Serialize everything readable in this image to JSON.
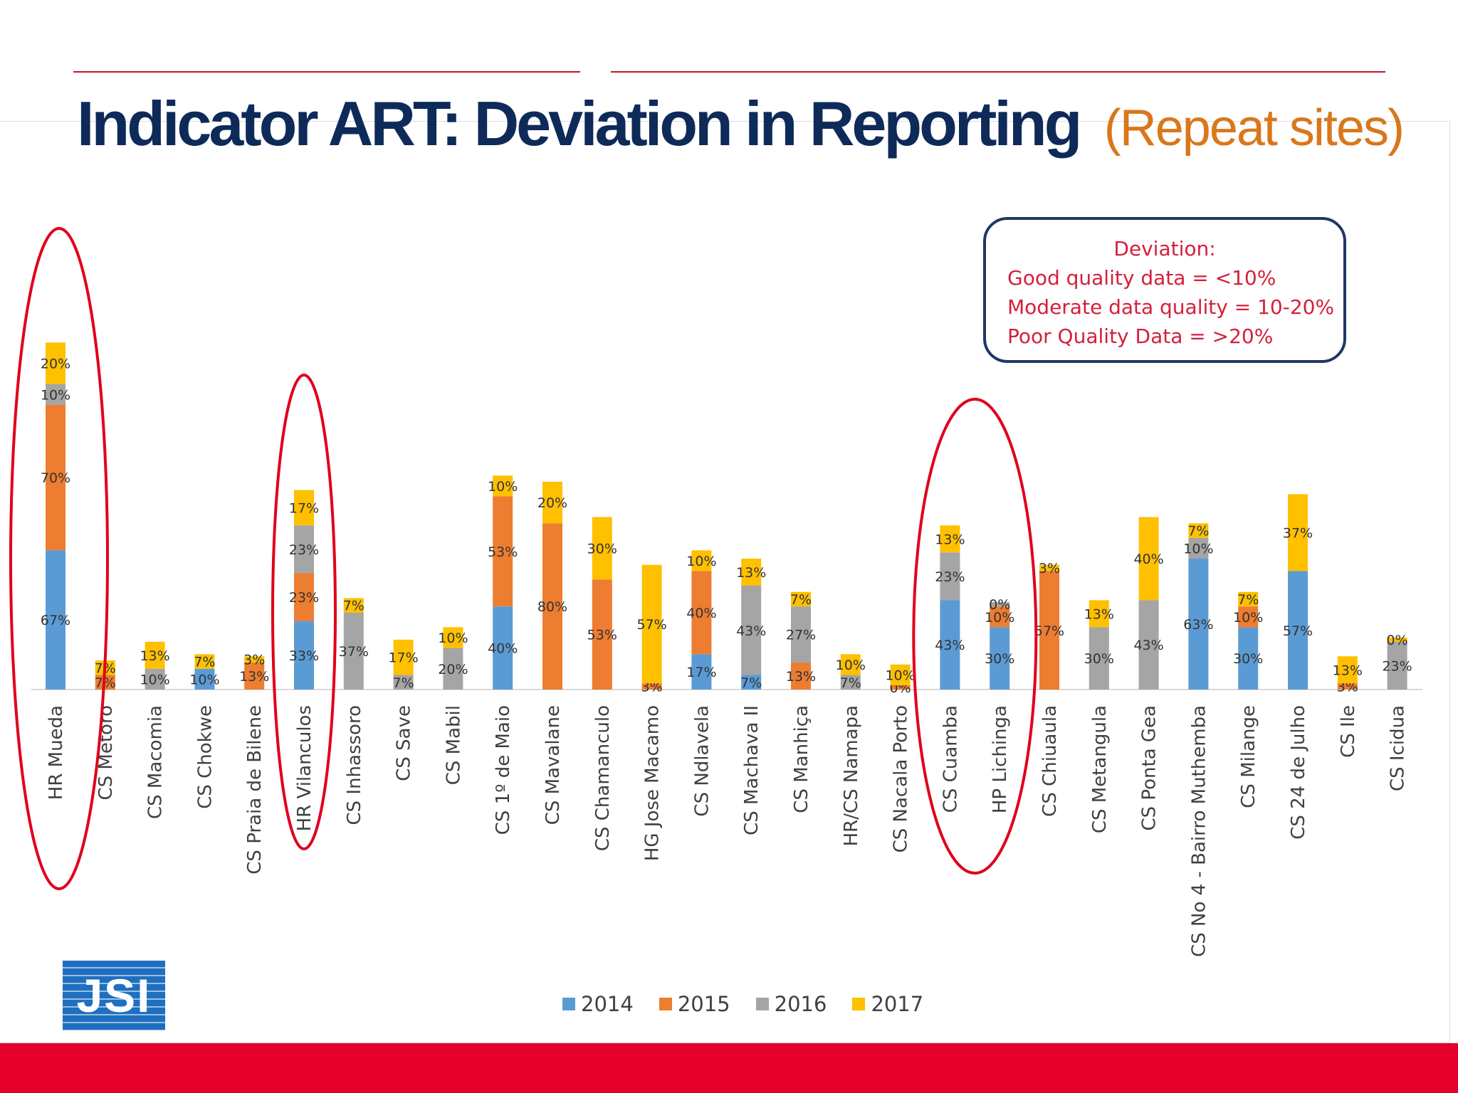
{
  "title": {
    "main": "Indicator ART: Deviation in Reporting",
    "sub": "(Repeat sites)"
  },
  "deviation_legend": {
    "heading": "Deviation:",
    "lines": [
      "Good quality data = <10%",
      "Moderate data quality = 10-20%",
      "Poor Quality Data = >20%"
    ]
  },
  "logo_text": "JSI",
  "colors": {
    "title": "#0d2a59",
    "subtitle": "#d9771a",
    "highlight_ellipse": "#e0001b",
    "footer": "#e4002b",
    "legend_text": "#d41f3a"
  },
  "highlighted_sites": [
    "HR Mueda",
    "HR Vilanculos",
    "CS Cuamba",
    "HP Lichinga"
  ],
  "chart_data": {
    "type": "bar",
    "stacked": true,
    "grid": false,
    "legend_position": "bottom",
    "categories": [
      "HR Mueda",
      "CS Metoro",
      "CS Macomia",
      "CS Chokwe",
      "CS Praia de Bilene",
      "HR Vilanculos",
      "CS Inhassoro",
      "CS Save",
      "CS Mabil",
      "CS 1º de Maio",
      "CS Mavalane",
      "CS Chamanculo",
      "HG Jose Macamo",
      "CS Ndlavela",
      "CS Machava II",
      "CS Manhiça",
      "HR/CS Namapa",
      "CS Nacala Porto",
      "CS Cuamba",
      "HP Lichinga",
      "CS Chiuaula",
      "CS Metangula",
      "CS Ponta Gea",
      "CS No 4 - Bairro Muthemba",
      "CS Milange",
      "CS 24 de Julho",
      "CS Ile",
      "CS Icidua"
    ],
    "series": [
      {
        "name": "2014",
        "color": "#5b9bd5",
        "values": [
          67,
          null,
          null,
          10,
          null,
          33,
          null,
          null,
          null,
          40,
          null,
          null,
          null,
          17,
          7,
          null,
          null,
          null,
          43,
          30,
          null,
          null,
          null,
          63,
          30,
          57,
          null,
          null
        ],
        "labels": [
          "67%",
          "",
          "",
          "10%",
          "",
          "33%",
          "",
          "",
          "",
          "40%",
          "",
          "",
          "",
          "17%",
          "7%",
          "",
          "",
          "",
          "43%",
          "30%",
          "",
          "",
          "",
          "63%",
          "30%",
          "57%",
          "",
          ""
        ]
      },
      {
        "name": "2015",
        "color": "#ed7d31",
        "values": [
          70,
          7,
          null,
          null,
          13,
          23,
          null,
          null,
          null,
          53,
          80,
          53,
          3,
          40,
          null,
          13,
          null,
          0,
          null,
          10,
          57,
          null,
          null,
          null,
          10,
          null,
          3,
          null
        ],
        "labels": [
          "70%",
          "7%",
          "",
          "",
          "13%",
          "23%",
          "",
          "",
          "",
          "53%",
          "80%",
          "53%",
          "3%",
          "40%",
          "",
          "13%",
          "",
          "0%",
          "",
          "10%",
          "57%",
          "",
          "",
          "",
          "10%",
          "",
          "3%",
          ""
        ]
      },
      {
        "name": "2016",
        "color": "#a5a5a5",
        "values": [
          10,
          null,
          10,
          null,
          null,
          23,
          37,
          7,
          20,
          null,
          null,
          null,
          null,
          null,
          43,
          27,
          7,
          null,
          23,
          0,
          null,
          30,
          43,
          10,
          null,
          null,
          null,
          23
        ],
        "labels": [
          "10%",
          "",
          "10%",
          "",
          "",
          "23%",
          "37%",
          "7%",
          "20%",
          "",
          "",
          "",
          "",
          "",
          "43%",
          "27%",
          "7%",
          "",
          "23%",
          "0%",
          "",
          "30%",
          "43%",
          "10%",
          "",
          "",
          "",
          "23%"
        ]
      },
      {
        "name": "2017",
        "color": "#ffc000",
        "values": [
          20,
          7,
          13,
          7,
          3,
          17,
          7,
          17,
          10,
          10,
          20,
          30,
          57,
          10,
          13,
          7,
          10,
          10,
          13,
          null,
          3,
          13,
          40,
          7,
          7,
          37,
          13,
          0
        ],
        "labels": [
          "20%",
          "7%",
          "13%",
          "7%",
          "3%",
          "17%",
          "7%",
          "17%",
          "10%",
          "10%",
          "20%",
          "30%",
          "57%",
          "10%",
          "13%",
          "7%",
          "10%",
          "10%",
          "13%",
          "",
          "3%",
          "13%",
          "40%",
          "7%",
          "7%",
          "37%",
          "13%",
          "0%"
        ]
      }
    ]
  }
}
